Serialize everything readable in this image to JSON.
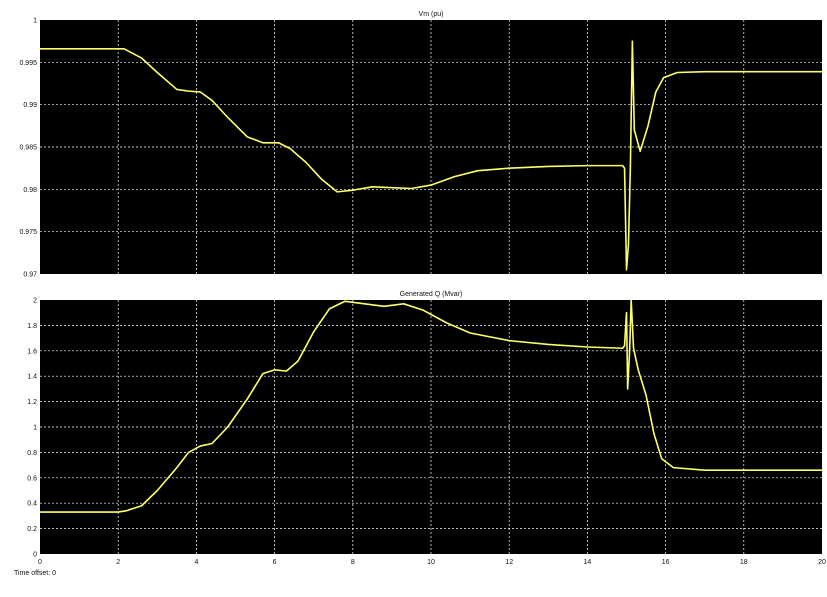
{
  "window": {
    "time_offset_label": "Time offset: 0",
    "colors": {
      "background": "#ffffff",
      "axes_bg": "#000000",
      "grid": "#ffffff",
      "trace": "#ffff66",
      "text": "#111111"
    }
  },
  "chart_data": [
    {
      "type": "line",
      "title": "Vm (pu)",
      "xlabel": "",
      "ylabel": "",
      "xlim": [
        0,
        20
      ],
      "ylim": [
        0.97,
        1
      ],
      "x_ticks": [
        0,
        2,
        4,
        6,
        8,
        10,
        12,
        14,
        16,
        18,
        20
      ],
      "y_ticks": [
        0.97,
        0.975,
        0.98,
        0.985,
        0.99,
        0.995,
        1
      ],
      "y_tick_labels": [
        "0.97",
        "0.975",
        "0.98",
        "0.985",
        "0.99",
        "0.995",
        "1"
      ],
      "x_tick_labels": [
        "",
        "",
        "",
        "",
        "",
        "",
        "",
        "",
        "",
        "",
        ""
      ],
      "grid": true,
      "series": [
        {
          "points": [
            [
              0,
              0.9966
            ],
            [
              1,
              0.9966
            ],
            [
              2,
              0.9966
            ],
            [
              2.15,
              0.9966
            ],
            [
              2.6,
              0.9955
            ],
            [
              3,
              0.9938
            ],
            [
              3.5,
              0.9918
            ],
            [
              3.8,
              0.9916
            ],
            [
              4.1,
              0.9915
            ],
            [
              4.4,
              0.9905
            ],
            [
              4.8,
              0.9885
            ],
            [
              5.3,
              0.9862
            ],
            [
              5.7,
              0.9855
            ],
            [
              6.1,
              0.9855
            ],
            [
              6.4,
              0.9848
            ],
            [
              6.8,
              0.9832
            ],
            [
              7.2,
              0.9812
            ],
            [
              7.6,
              0.9797
            ],
            [
              8,
              0.9799
            ],
            [
              8.5,
              0.9803
            ],
            [
              9,
              0.9802
            ],
            [
              9.5,
              0.9801
            ],
            [
              10,
              0.9805
            ],
            [
              10.6,
              0.9815
            ],
            [
              11.2,
              0.9822
            ],
            [
              12,
              0.9825
            ],
            [
              13,
              0.9827
            ],
            [
              14,
              0.9828
            ],
            [
              14.9,
              0.9828
            ],
            [
              14.95,
              0.9825
            ],
            [
              15.0,
              0.9705
            ],
            [
              15.05,
              0.9735
            ],
            [
              15.1,
              0.9828
            ],
            [
              15.15,
              0.9975
            ],
            [
              15.2,
              0.987
            ],
            [
              15.35,
              0.9845
            ],
            [
              15.55,
              0.9875
            ],
            [
              15.75,
              0.9915
            ],
            [
              15.95,
              0.9932
            ],
            [
              16.3,
              0.9938
            ],
            [
              17,
              0.9939
            ],
            [
              18,
              0.9939
            ],
            [
              19,
              0.9939
            ],
            [
              20,
              0.9939
            ]
          ]
        }
      ]
    },
    {
      "type": "line",
      "title": "Generated Q (Mvar)",
      "xlabel": "",
      "ylabel": "",
      "xlim": [
        0,
        20
      ],
      "ylim": [
        0,
        2
      ],
      "x_ticks": [
        0,
        2,
        4,
        6,
        8,
        10,
        12,
        14,
        16,
        18,
        20
      ],
      "x_tick_labels": [
        "0",
        "2",
        "4",
        "6",
        "8",
        "10",
        "12",
        "14",
        "16",
        "18",
        "20"
      ],
      "y_ticks": [
        0,
        0.2,
        0.4,
        0.6,
        0.8,
        1,
        1.2,
        1.4,
        1.6,
        1.8,
        2
      ],
      "y_tick_labels": [
        "0",
        "0.2",
        "0.4",
        "0.6",
        "0.8",
        "1",
        "1.2",
        "1.4",
        "1.6",
        "1.8",
        "2"
      ],
      "grid": true,
      "series": [
        {
          "points": [
            [
              0,
              0.33
            ],
            [
              1,
              0.33
            ],
            [
              2,
              0.33
            ],
            [
              2.2,
              0.34
            ],
            [
              2.6,
              0.38
            ],
            [
              3,
              0.5
            ],
            [
              3.5,
              0.68
            ],
            [
              3.8,
              0.8
            ],
            [
              4.1,
              0.85
            ],
            [
              4.4,
              0.87
            ],
            [
              4.8,
              1.0
            ],
            [
              5.3,
              1.22
            ],
            [
              5.7,
              1.42
            ],
            [
              6,
              1.45
            ],
            [
              6.3,
              1.44
            ],
            [
              6.6,
              1.52
            ],
            [
              7,
              1.75
            ],
            [
              7.4,
              1.93
            ],
            [
              7.8,
              1.99
            ],
            [
              8.3,
              1.97
            ],
            [
              8.8,
              1.95
            ],
            [
              9.3,
              1.97
            ],
            [
              9.8,
              1.92
            ],
            [
              10.4,
              1.82
            ],
            [
              11,
              1.74
            ],
            [
              12,
              1.68
            ],
            [
              13,
              1.65
            ],
            [
              14,
              1.63
            ],
            [
              14.9,
              1.62
            ],
            [
              14.95,
              1.64
            ],
            [
              15.0,
              1.9
            ],
            [
              15.03,
              1.3
            ],
            [
              15.08,
              1.6
            ],
            [
              15.12,
              2.0
            ],
            [
              15.18,
              1.62
            ],
            [
              15.3,
              1.45
            ],
            [
              15.5,
              1.25
            ],
            [
              15.7,
              0.95
            ],
            [
              15.9,
              0.75
            ],
            [
              16.2,
              0.68
            ],
            [
              17,
              0.66
            ],
            [
              18,
              0.66
            ],
            [
              19,
              0.66
            ],
            [
              20,
              0.66
            ]
          ]
        }
      ]
    }
  ]
}
